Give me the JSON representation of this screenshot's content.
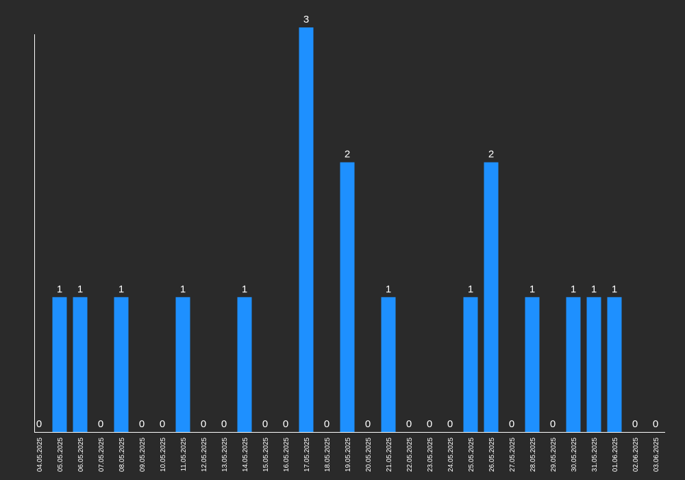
{
  "chart_data": {
    "type": "bar",
    "categories": [
      "04.05.2025",
      "05.05.2025",
      "06.05.2025",
      "07.05.2025",
      "08.05.2025",
      "09.05.2025",
      "10.05.2025",
      "11.05.2025",
      "12.05.2025",
      "13.05.2025",
      "14.05.2025",
      "15.05.2025",
      "16.05.2025",
      "17.05.2025",
      "18.05.2025",
      "19.05.2025",
      "20.05.2025",
      "21.05.2025",
      "22.05.2025",
      "23.05.2025",
      "24.05.2025",
      "25.05.2025",
      "26.05.2025",
      "27.05.2025",
      "28.05.2025",
      "29.05.2025",
      "30.05.2025",
      "31.05.2025",
      "01.06.2025",
      "02.06.2025",
      "03.06.2025"
    ],
    "values": [
      0,
      1,
      1,
      0,
      1,
      0,
      0,
      1,
      0,
      0,
      1,
      0,
      0,
      3,
      0,
      2,
      0,
      1,
      0,
      0,
      0,
      1,
      2,
      0,
      1,
      0,
      1,
      1,
      1,
      0,
      0
    ],
    "ylim": [
      0,
      3
    ],
    "grid": false,
    "legend": "none",
    "colors": {
      "bar": "#1e90ff",
      "background": "#2a2a2a",
      "axis": "#ffffff",
      "text": "#ffffff"
    }
  }
}
